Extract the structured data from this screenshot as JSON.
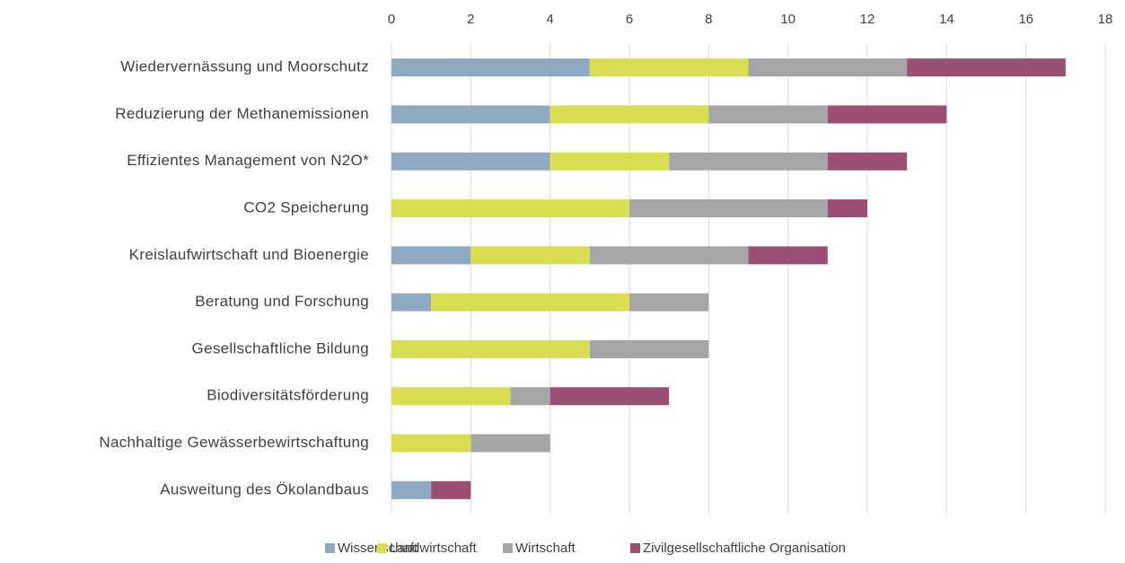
{
  "chart_data": {
    "type": "bar",
    "orientation": "horizontal",
    "stacked": true,
    "categories": [
      "Wiedervernässung und Moorschutz",
      "Reduzierung der Methanemissionen",
      "Effizientes Management von N2O*",
      "CO2 Speicherung",
      "Kreislaufwirtschaft und Bioenergie",
      "Beratung und Forschung",
      "Gesellschaftliche Bildung",
      "Biodiversitätsförderung",
      "Nachhaltige Gewässerbewirtschaftung",
      "Ausweitung des Ökolandbaus"
    ],
    "series": [
      {
        "name": "Wissenschaft",
        "color": "#8eaac3",
        "values": [
          5,
          4,
          4,
          0,
          2,
          1,
          0,
          0,
          0,
          1
        ]
      },
      {
        "name": "Landwirtschaft",
        "color": "#d9de50",
        "values": [
          4,
          4,
          3,
          6,
          3,
          5,
          5,
          3,
          2,
          0
        ]
      },
      {
        "name": "Wirtschaft",
        "color": "#a5a5a5",
        "values": [
          4,
          3,
          4,
          5,
          4,
          2,
          3,
          1,
          2,
          0
        ]
      },
      {
        "name": "Zivilgesellschaftliche Organisation",
        "color": "#9b4f75",
        "values": [
          4,
          3,
          2,
          1,
          2,
          0,
          0,
          3,
          0,
          1
        ]
      }
    ],
    "xlim": [
      0,
      18
    ],
    "xticks": [
      0,
      2,
      4,
      6,
      8,
      10,
      12,
      14,
      16,
      18
    ],
    "grid": true,
    "legend": "bottom"
  }
}
